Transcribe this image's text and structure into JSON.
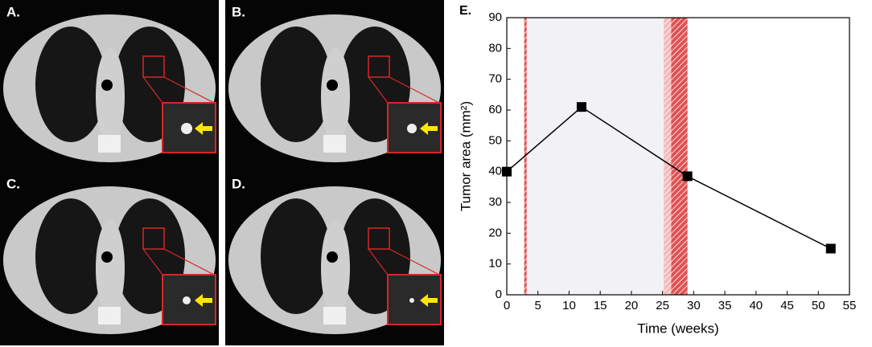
{
  "panels": [
    {
      "label": "A."
    },
    {
      "label": "B."
    },
    {
      "label": "C."
    },
    {
      "label": "D."
    }
  ],
  "chart_data": {
    "type": "line",
    "panel_label": "E.",
    "x_label": "Time (weeks)",
    "y_label": "Tumor area (mm²)",
    "x": [
      0,
      12,
      29,
      52
    ],
    "values": [
      40,
      61,
      38.5,
      15
    ],
    "color": "#000000",
    "xlim": [
      0,
      55
    ],
    "xticks": [
      0,
      5,
      10,
      15,
      20,
      25,
      30,
      35,
      40,
      45,
      50,
      55
    ],
    "ylim": [
      0,
      90
    ],
    "yticks": [
      0,
      10,
      20,
      30,
      40,
      50,
      60,
      70,
      80,
      90
    ],
    "regions": [
      {
        "x": [
          2.8,
          3.2
        ],
        "color": "#d62728",
        "hatch": true
      },
      {
        "x": [
          3.2,
          25.2
        ],
        "color": "#f1f1f6",
        "hatch": false
      },
      {
        "x": [
          25.2,
          26.4
        ],
        "color": "#f2a7a7",
        "hatch": true
      },
      {
        "x": [
          26.4,
          29
        ],
        "color": "#d62728",
        "hatch": true
      }
    ]
  }
}
